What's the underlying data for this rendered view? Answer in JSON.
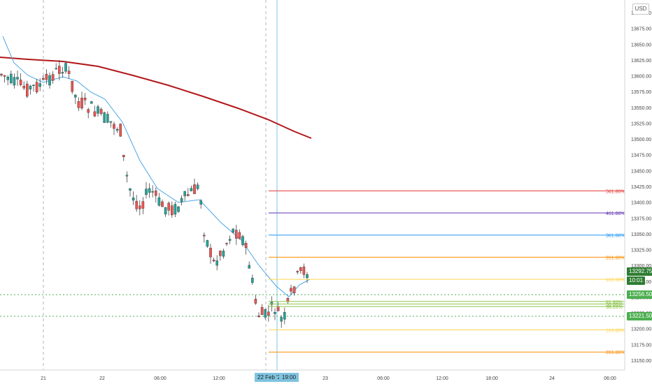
{
  "currency_label": "USD",
  "colors": {
    "up": "#26a69a",
    "down": "#ef5350",
    "ema_slow": "#b2181b",
    "ema_fast": "#4da6e6",
    "dotted_green": "#4caf50",
    "last_price_bg": "#2e7d32",
    "crosshair": "#7fc4e0"
  },
  "price_axis": {
    "ticks": [
      "13700.00",
      "13675.00",
      "13650.00",
      "13625.00",
      "13600.00",
      "13575.00",
      "13550.00",
      "13525.00",
      "13500.00",
      "13475.00",
      "13450.00",
      "13425.00",
      "13400.00",
      "13375.00",
      "13350.00",
      "13325.00",
      "13300.00",
      "13275.00",
      "13250.00",
      "13225.00",
      "13200.00",
      "13175.00",
      "13150.00"
    ]
  },
  "time_axis": {
    "labels": [
      "21",
      "22",
      "06:00",
      "12:00",
      "22 Feb '21",
      "19:00",
      "23",
      "06:00",
      "12:00",
      "18:00",
      "24",
      "06:00"
    ]
  },
  "price_tags": {
    "last_price": "13292.75",
    "countdown": "10:01",
    "level_upper": "13256.50",
    "level_lower": "13221.50"
  },
  "fib_levels": [
    {
      "label": "561.80%",
      "price": 13418,
      "color": "#e53935"
    },
    {
      "label": "461.80%",
      "price": 13383,
      "color": "#5e35b1"
    },
    {
      "label": "361.80%",
      "price": 13348,
      "color": "#2196f3"
    },
    {
      "label": "261.80%",
      "price": 13313,
      "color": "#fb8c00"
    },
    {
      "label": "161.80%",
      "price": 13278,
      "color": "#ffd54f"
    },
    {
      "label": "61.80%",
      "price": 13243,
      "color": "#8bc34a"
    },
    {
      "label": "50.00%",
      "price": 13239,
      "color": "#8bc34a"
    },
    {
      "label": "38.20%",
      "price": 13235,
      "color": "#8bc34a"
    },
    {
      "label": "161.80%",
      "price": 13198,
      "color": "#ffd54f"
    },
    {
      "label": "261.80%",
      "price": 13163,
      "color": "#fb8c00"
    }
  ]
}
